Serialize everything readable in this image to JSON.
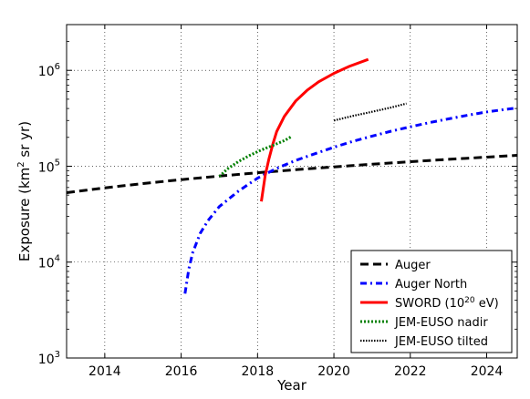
{
  "chart_data": {
    "type": "line",
    "title": "",
    "xlabel": "Year",
    "ylabel_parts": [
      "Exposure (km",
      "2",
      " sr yr)"
    ],
    "xlim": [
      2013,
      2024.8
    ],
    "ylim": [
      1000,
      3000000
    ],
    "y_scale": "log",
    "grid": true,
    "legend_position": "bottom-right",
    "x_ticks": [
      2014,
      2016,
      2018,
      2020,
      2022,
      2024
    ],
    "y_ticks": [
      {
        "value": 1000,
        "base": "10",
        "exp": "3"
      },
      {
        "value": 10000,
        "base": "10",
        "exp": "4"
      },
      {
        "value": 100000,
        "base": "10",
        "exp": "5"
      },
      {
        "value": 1000000,
        "base": "10",
        "exp": "6"
      }
    ],
    "series": [
      {
        "name": "Auger",
        "color": "#000000",
        "style": "dashed",
        "x": [
          2013,
          2014,
          2015,
          2016,
          2017,
          2018,
          2019,
          2020,
          2021,
          2022,
          2023,
          2024,
          2024.8
        ],
        "y": [
          53000,
          59500,
          66000,
          72500,
          79000,
          85500,
          92000,
          98500,
          105000,
          111500,
          118000,
          124500,
          130000
        ]
      },
      {
        "name": "Auger North",
        "color": "#0000ff",
        "style": "dashdot",
        "x": [
          2016.1,
          2016.2,
          2016.3,
          2016.5,
          2016.7,
          2017.0,
          2017.5,
          2018.0,
          2018.5,
          2019.0,
          2019.5,
          2020.0,
          2020.5,
          2021.0,
          2021.5,
          2022.0,
          2022.5,
          2023.0,
          2023.5,
          2024.0,
          2024.5,
          2024.8
        ],
        "y": [
          4700,
          8500,
          12500,
          20000,
          27000,
          38000,
          55000,
          75000,
          95000,
          115000,
          135000,
          158000,
          182000,
          206000,
          232000,
          258000,
          285000,
          312000,
          340000,
          368000,
          392000,
          405000
        ]
      },
      {
        "name_parts": [
          "SWORD (10",
          "20",
          " eV)"
        ],
        "color": "#ff0000",
        "style": "solid",
        "x": [
          2018.1,
          2018.2,
          2018.3,
          2018.4,
          2018.5,
          2018.7,
          2019.0,
          2019.3,
          2019.6,
          2020.0,
          2020.4,
          2020.9
        ],
        "y": [
          43000,
          80000,
          120000,
          170000,
          230000,
          330000,
          480000,
          620000,
          760000,
          930000,
          1100000,
          1300000
        ]
      },
      {
        "name": "JEM-EUSO nadir",
        "color": "#008000",
        "style": "dotted",
        "x": [
          2017.0,
          2017.2,
          2017.5,
          2017.8,
          2018.1,
          2018.4,
          2018.7,
          2018.9
        ],
        "y": [
          78000,
          93000,
          112000,
          130000,
          148000,
          165000,
          185000,
          205000
        ]
      },
      {
        "name": "JEM-EUSO tilted",
        "color": "#000000",
        "style": "densedotted",
        "x": [
          2020.0,
          2020.5,
          2021.0,
          2021.5,
          2021.9
        ],
        "y": [
          300000,
          335000,
          370000,
          410000,
          450000
        ]
      }
    ]
  }
}
